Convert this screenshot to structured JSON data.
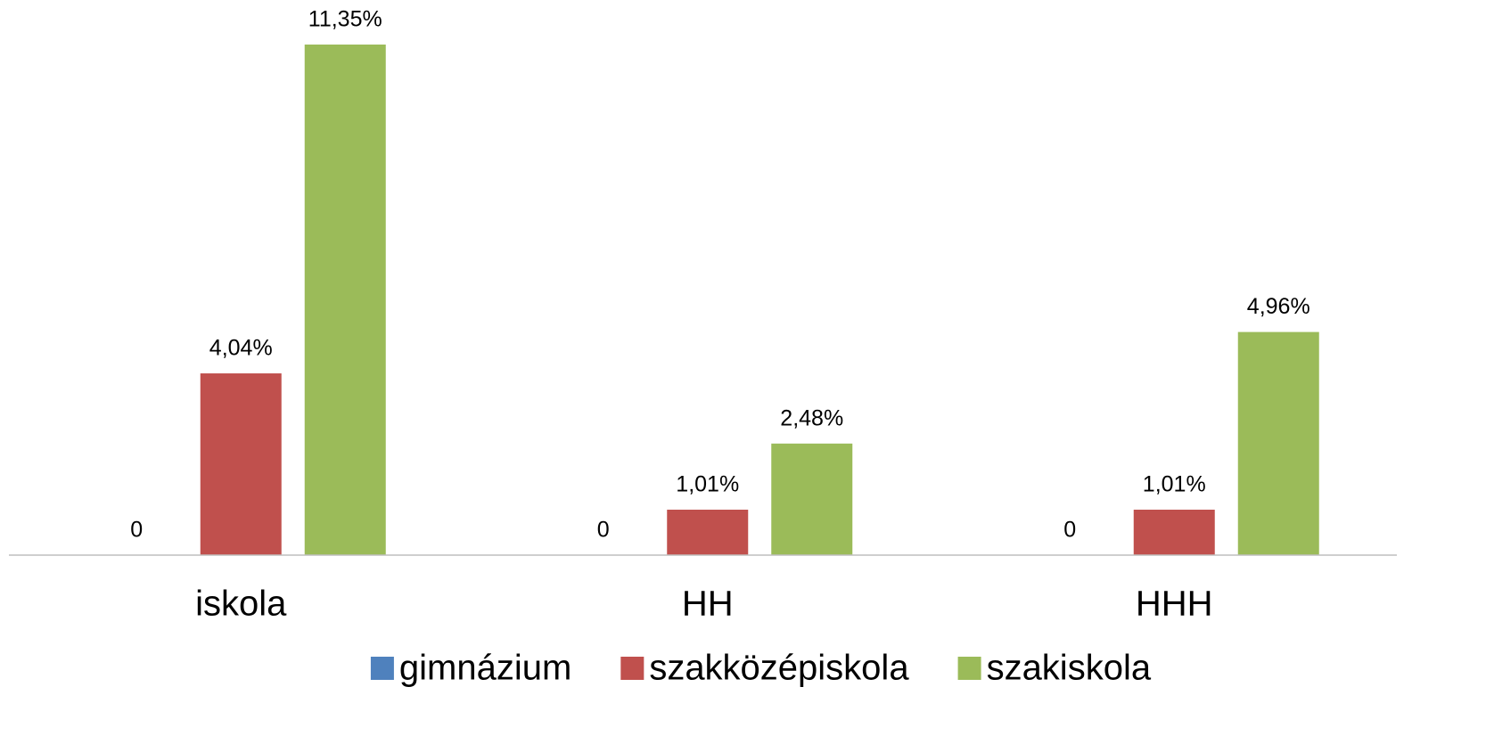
{
  "chart_data": {
    "type": "bar",
    "categories": [
      "iskola",
      "HH",
      "HHH"
    ],
    "series": [
      {
        "name": "gimnázium",
        "color": "#4f81bd",
        "values": [
          0,
          0,
          0
        ],
        "value_labels": [
          "0",
          "0",
          "0"
        ]
      },
      {
        "name": "szakközépiskola",
        "color": "#c0504d",
        "values": [
          4.04,
          1.01,
          1.01
        ],
        "value_labels": [
          "4,04%",
          "1,01%",
          "1,01%"
        ]
      },
      {
        "name": "szakiskola",
        "color": "#9bbb59",
        "values": [
          11.35,
          2.48,
          4.96
        ],
        "value_labels": [
          "11,35%",
          "2,48%",
          "4,96%"
        ]
      }
    ],
    "legend": "bottom"
  }
}
